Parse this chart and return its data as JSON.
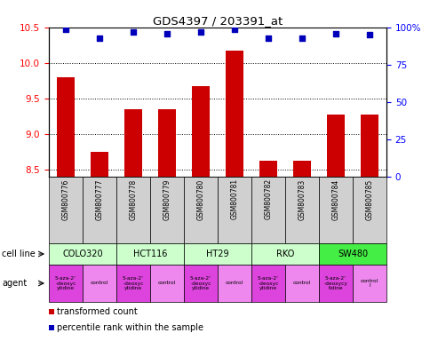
{
  "title": "GDS4397 / 203391_at",
  "samples": [
    "GSM800776",
    "GSM800777",
    "GSM800778",
    "GSM800779",
    "GSM800780",
    "GSM800781",
    "GSM800782",
    "GSM800783",
    "GSM800784",
    "GSM800785"
  ],
  "bar_values": [
    9.8,
    8.75,
    9.35,
    9.35,
    9.68,
    10.18,
    8.63,
    8.63,
    9.28,
    9.27
  ],
  "dot_values": [
    99,
    93,
    97,
    96,
    97,
    99,
    93,
    93,
    96,
    95
  ],
  "ylim_left": [
    8.4,
    10.5
  ],
  "ylim_right": [
    0,
    100
  ],
  "yticks_left": [
    8.5,
    9.0,
    9.5,
    10.0,
    10.5
  ],
  "yticks_right": [
    0,
    25,
    50,
    75,
    100
  ],
  "cell_lines": [
    {
      "label": "COLO320",
      "start": 0,
      "end": 2
    },
    {
      "label": "HCT116",
      "start": 2,
      "end": 4
    },
    {
      "label": "HT29",
      "start": 4,
      "end": 6
    },
    {
      "label": "RKO",
      "start": 6,
      "end": 8
    },
    {
      "label": "SW480",
      "start": 8,
      "end": 10
    }
  ],
  "cell_line_colors": [
    "#ccffcc",
    "#ccffcc",
    "#ccffcc",
    "#ccffcc",
    "#44ee44"
  ],
  "agent_labels": [
    "5-aza-2'\n-deoxyc\nytidine",
    "control",
    "5-aza-2'\n-deoxyc\nytidine",
    "control",
    "5-aza-2'\n-deoxyc\nytidine",
    "control",
    "5-aza-2'\n-deoxyc\nytidine",
    "control",
    "5-aza-2'\n-deoxycy\ntidine",
    "control\nl"
  ],
  "agent_colors": [
    "#dd44dd",
    "#ee88ee",
    "#dd44dd",
    "#ee88ee",
    "#dd44dd",
    "#ee88ee",
    "#dd44dd",
    "#ee88ee",
    "#dd44dd",
    "#ee88ee"
  ],
  "bar_color": "#cc0000",
  "dot_color": "#0000bb",
  "gsm_bg": "#d0d0d0"
}
